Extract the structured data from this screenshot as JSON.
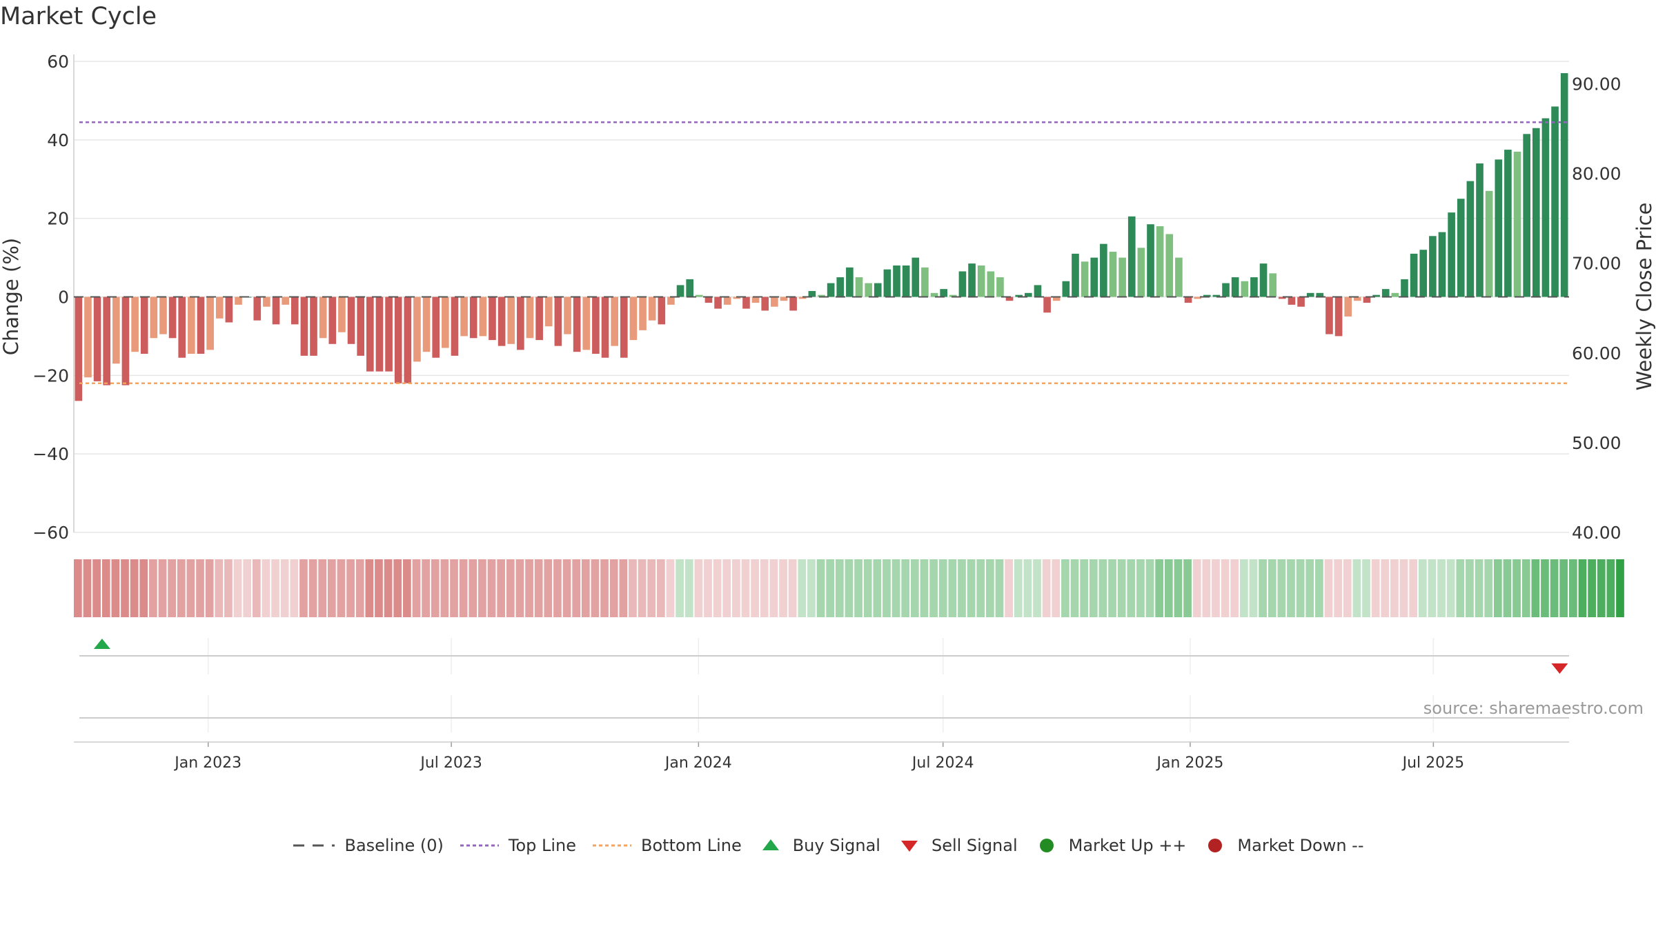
{
  "chart_data": {
    "type": "bar",
    "title": "Market Cycle",
    "ylabel": "Change (%)",
    "y2label": "Weekly Close Price",
    "ylim": [
      -60,
      60
    ],
    "y2lim": [
      40,
      92.5
    ],
    "yticks": [
      "60",
      "40",
      "20",
      "0",
      "−20",
      "−40",
      "−60"
    ],
    "y2ticks": [
      "90.00",
      "80.00",
      "70.00",
      "60.00",
      "50.00",
      "40.00"
    ],
    "x_start": "2022-09-23",
    "x_end": "2025-10-10",
    "xticks": [
      {
        "date": "2023-01-01",
        "label": "Jan 2023"
      },
      {
        "date": "2023-07-01",
        "label": "Jul 2023"
      },
      {
        "date": "2024-01-01",
        "label": "Jan 2024"
      },
      {
        "date": "2024-07-01",
        "label": "Jul 2024"
      },
      {
        "date": "2025-01-01",
        "label": "Jan 2025"
      },
      {
        "date": "2025-07-01",
        "label": "Jul 2025"
      }
    ],
    "reference_lines": {
      "baseline": 0,
      "top": 44.5,
      "bottom": -22
    },
    "values": [
      -26.5,
      -20.5,
      -21.5,
      -22.5,
      -17,
      -22.5,
      -14,
      -14.5,
      -10.5,
      -9.5,
      -10.5,
      -15.5,
      -14.5,
      -14.5,
      -13.5,
      -5.5,
      -6.5,
      -2,
      0,
      -6,
      -2.5,
      -7,
      -2,
      -7,
      -15,
      -15,
      -10.5,
      -12,
      -9,
      -12,
      -15,
      -19,
      -19,
      -19,
      -22,
      -22,
      -16.5,
      -14,
      -15.5,
      -13,
      -15,
      -10,
      -10.5,
      -10,
      -11,
      -12.5,
      -12,
      -13.5,
      -10.5,
      -11,
      -7.5,
      -12.5,
      -9.5,
      -14,
      -13.5,
      -14.5,
      -15.5,
      -12.5,
      -15.5,
      -11,
      -8.5,
      -6,
      -7,
      -2,
      3,
      4.5,
      0.5,
      -1.5,
      -3,
      -2,
      -0.5,
      -3,
      -1.5,
      -3.5,
      -2.5,
      -1,
      -3.5,
      -0.5,
      1.5,
      0.5,
      3.5,
      5,
      7.5,
      5,
      3.5,
      3.5,
      7,
      8,
      8,
      10,
      7.5,
      1,
      2,
      0.5,
      6.5,
      8.5,
      8,
      6.5,
      5,
      -1,
      0.5,
      1,
      3,
      -4,
      -1,
      4,
      11,
      9,
      10,
      13.5,
      11.5,
      10,
      20.5,
      12.5,
      18.5,
      18,
      16,
      10,
      -1.5,
      -0.5,
      0.5,
      0.5,
      3.5,
      5,
      4,
      5,
      8.5,
      6,
      -0.5,
      -2,
      -2.5,
      1,
      1,
      -9.5,
      -10,
      -5,
      -1,
      -1.5,
      0.5,
      2,
      1,
      4.5,
      11,
      12,
      15.5,
      16.5,
      21.5,
      25,
      29.5,
      34,
      27,
      35,
      37.5,
      37,
      41.5,
      43,
      45.5,
      48.5,
      57
    ],
    "regime_intensity": [
      4,
      4,
      4,
      4,
      4,
      4,
      4,
      4,
      3,
      3,
      3,
      3,
      3,
      3,
      3,
      2,
      2,
      1,
      1,
      2,
      1,
      1,
      1,
      1,
      3,
      3,
      3,
      3,
      3,
      3,
      3,
      4,
      4,
      4,
      4,
      4,
      3,
      3,
      3,
      3,
      3,
      3,
      3,
      3,
      3,
      3,
      3,
      3,
      3,
      3,
      3,
      3,
      3,
      3,
      3,
      3,
      3,
      3,
      3,
      2,
      2,
      2,
      2,
      1,
      -1,
      -1,
      1,
      1,
      1,
      1,
      1,
      1,
      1,
      1,
      1,
      1,
      1,
      -1,
      -1,
      -2,
      -2,
      -2,
      -2,
      -2,
      -2,
      -2,
      -2,
      -2,
      -2,
      -2,
      -2,
      -2,
      -2,
      -2,
      -2,
      -2,
      -2,
      -2,
      -2,
      1,
      -1,
      -1,
      -1,
      1,
      1,
      -2,
      -2,
      -2,
      -2,
      -2,
      -2,
      -2,
      -2,
      -2,
      -2,
      -3,
      -3,
      -3,
      -3,
      1,
      1,
      1,
      1,
      1,
      -1,
      -1,
      -2,
      -2,
      -2,
      -2,
      -2,
      -2,
      -2,
      1,
      1,
      1,
      -1,
      -1,
      1,
      1,
      1,
      1,
      1,
      -1,
      -1,
      -1,
      -1,
      -2,
      -2,
      -2,
      -2,
      -3,
      -3,
      -3,
      -3,
      -4,
      -4,
      -4,
      -4,
      -4,
      -5,
      -5,
      -5,
      -5,
      -6
    ],
    "buy_signals": [
      "2022-10-14"
    ],
    "sell_signals": [
      "2025-10-03"
    ]
  },
  "colors": {
    "strong_up": "#2e8b57",
    "mild_up": "#7fc081",
    "strong_down": "#cd5c5c",
    "mild_down": "#e99a7a",
    "top_line": "#9467bd",
    "bottom_line": "#f4a460",
    "buy": "#22a84a",
    "sell": "#d62728"
  },
  "source": "source: sharemaestro.com",
  "legend": [
    {
      "id": "baseline",
      "label": "Baseline (0)",
      "icon": "dash-line"
    },
    {
      "id": "top",
      "label": "Top Line",
      "icon": "dotted-line-purple"
    },
    {
      "id": "bottom",
      "label": "Bottom Line",
      "icon": "dotted-line-orange"
    },
    {
      "id": "buy",
      "label": "Buy Signal",
      "icon": "triangle-up-icon"
    },
    {
      "id": "sell",
      "label": "Sell Signal",
      "icon": "triangle-down-icon"
    },
    {
      "id": "up",
      "label": "Market Up ++",
      "icon": "green-dot-icon"
    },
    {
      "id": "down",
      "label": "Market Down --",
      "icon": "red-dot-icon"
    }
  ]
}
